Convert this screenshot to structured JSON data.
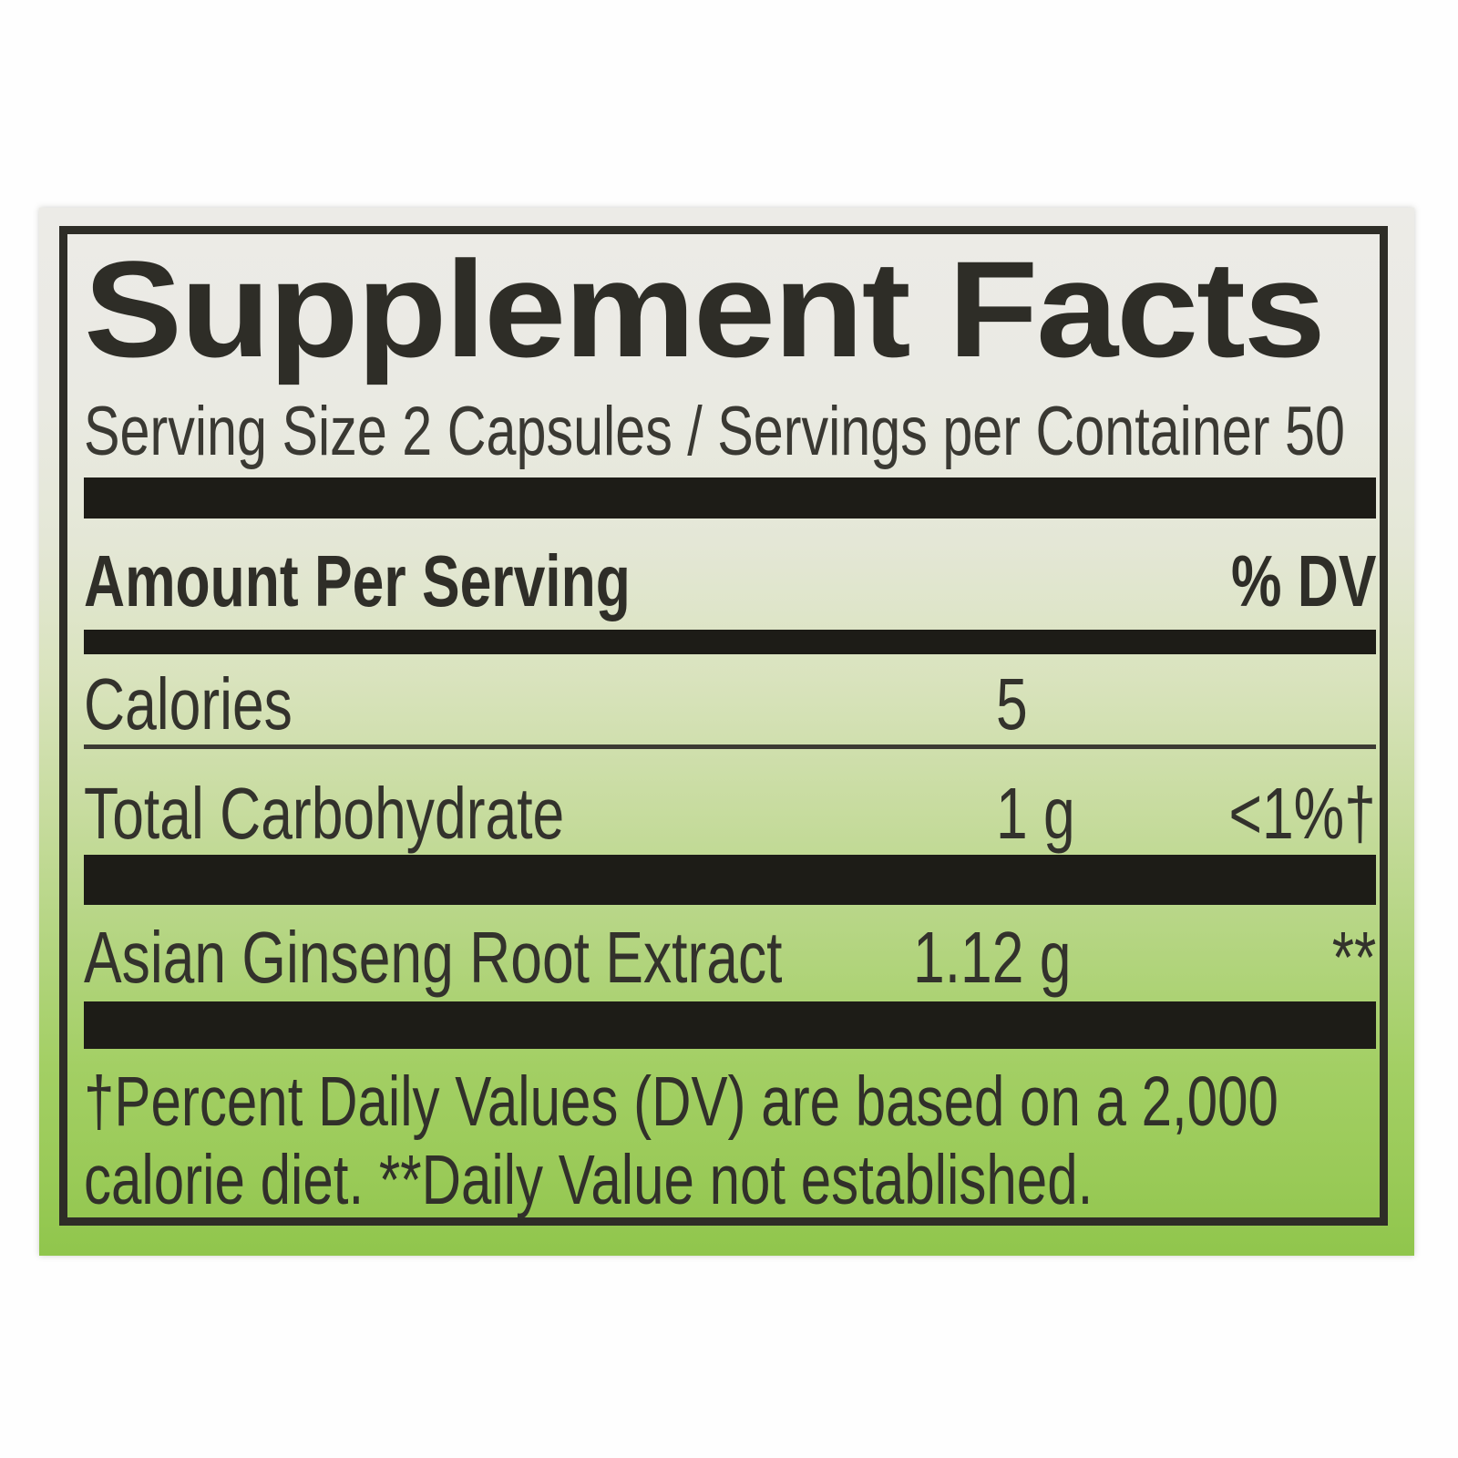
{
  "label": {
    "title": "Supplement Facts",
    "serving_info": "Serving Size 2 Capsules / Servings per Container 50",
    "columns": {
      "amount_header": "Amount Per Serving",
      "dv_header": "% DV"
    },
    "rows": [
      {
        "name": "Calories",
        "amount": "5",
        "dv": ""
      },
      {
        "name": "Total Carbohydrate",
        "amount": "1 g",
        "dv": "<1%†"
      },
      {
        "name": "Asian Ginseng Root Extract",
        "amount": "1.12 g",
        "dv": "**"
      }
    ],
    "footnote_line1": "†Percent Daily Values (DV) are based on a 2,000",
    "footnote_line2": "calorie diet. **Daily Value not established.",
    "colors": {
      "ink": "#2e2d27",
      "bar": "#1d1c17",
      "paper-top": "#ecebe7",
      "paper-green": "#90c64c"
    }
  }
}
